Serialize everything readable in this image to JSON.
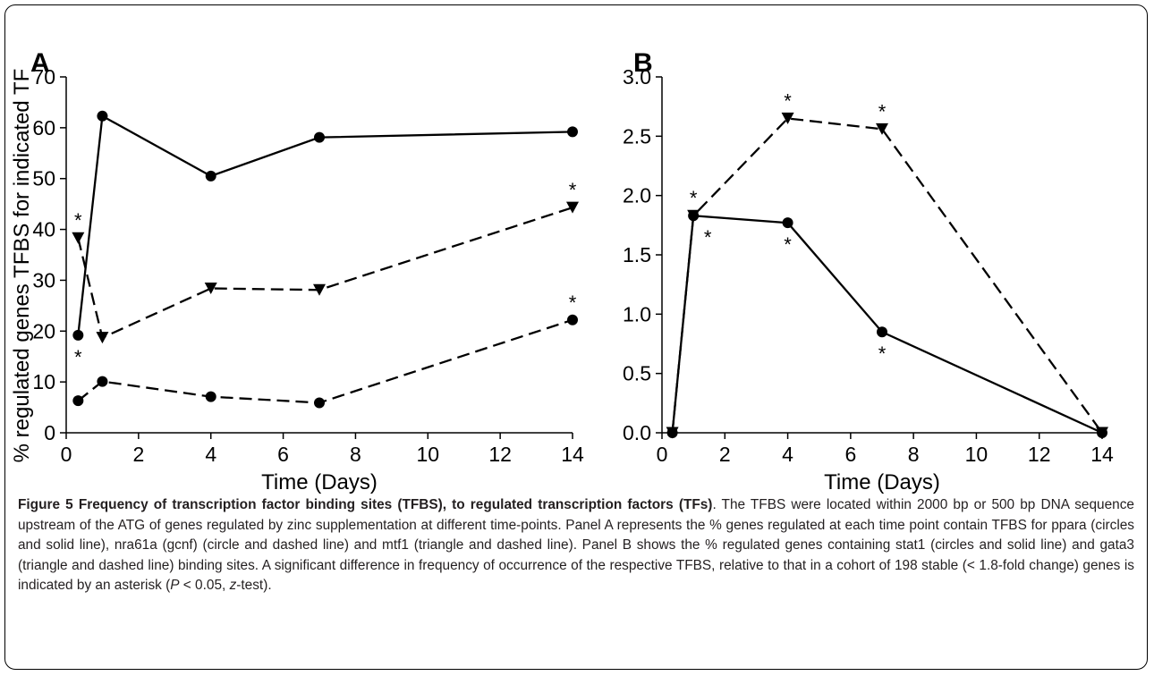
{
  "figure": {
    "caption_lead": "Figure 5 Frequency of transcription factor binding sites (TFBS), to regulated transcription factors (TFs)",
    "caption_body_1": ". The TFBS were located within 2000 bp or 500 bp DNA sequence upstream of the ATG of genes regulated by zinc supplementation at different time-points. Panel A represents the % genes regulated at each time point contain TFBS for ppara (circles and solid line), nra61a (gcnf) (circle and dashed line) and mtf1 (triangle and dashed line). Panel B shows the % regulated genes containing stat1 (circles and solid line) and gata3 (triangle and dashed line) binding sites. A significant difference in frequency of occurrence of the respective TFBS, relative to that in a cohort of 198 stable (< 1.8-fold change) genes is indicated by an asterisk (",
    "caption_p": "P",
    "caption_mid": " < 0.05, ",
    "caption_z": "z",
    "caption_end": "-test)."
  },
  "chart_data": [
    {
      "panel": "A",
      "type": "line",
      "ylabel": "% regulated genes TFBS for indicated TF",
      "xlabel": "Time (Days)",
      "xlim": [
        0,
        14
      ],
      "ylim": [
        0,
        70
      ],
      "xticks": [
        0,
        2,
        4,
        6,
        8,
        10,
        12,
        14
      ],
      "yticks": [
        0,
        10,
        20,
        30,
        40,
        50,
        60,
        70
      ],
      "series": [
        {
          "marker": "circle",
          "line": "solid",
          "x": [
            0.33,
            1,
            4,
            7,
            14
          ],
          "y": [
            19.2,
            62.3,
            50.5,
            58.1,
            59.2
          ],
          "significant": [
            "below",
            "",
            "",
            "",
            ""
          ]
        },
        {
          "marker": "circle",
          "line": "dashed",
          "x": [
            0.33,
            1,
            4,
            7,
            14
          ],
          "y": [
            6.3,
            10.1,
            7.1,
            5.9,
            22.2
          ],
          "significant": [
            "",
            "",
            "",
            "",
            "above"
          ]
        },
        {
          "marker": "triangle",
          "line": "dashed",
          "x": [
            0.33,
            1,
            4,
            7,
            14
          ],
          "y": [
            38.3,
            18.7,
            28.4,
            28.1,
            44.3
          ],
          "significant": [
            "above",
            "",
            "",
            "",
            "above"
          ]
        }
      ]
    },
    {
      "panel": "B",
      "type": "line",
      "ylabel": "",
      "xlabel": "Time (Days)",
      "xlim": [
        0,
        14
      ],
      "ylim": [
        0,
        3.0
      ],
      "xticks": [
        0,
        2,
        4,
        6,
        8,
        10,
        12,
        14
      ],
      "yticks": [
        "0.0",
        "0.5",
        "1.0",
        "1.5",
        "2.0",
        "2.5",
        "3.0"
      ],
      "series": [
        {
          "marker": "circle",
          "line": "solid",
          "x": [
            0.33,
            1,
            4,
            7,
            14
          ],
          "y": [
            0.0,
            1.83,
            1.77,
            0.85,
            0.0
          ],
          "significant": [
            "",
            "below",
            "below",
            "below",
            ""
          ]
        },
        {
          "marker": "triangle",
          "line": "dashed",
          "x": [
            0.33,
            1,
            4,
            7,
            14
          ],
          "y": [
            0.0,
            1.83,
            2.65,
            2.56,
            0.0
          ],
          "significant": [
            "",
            "above",
            "above",
            "above",
            ""
          ]
        }
      ]
    }
  ],
  "significance_marker": "*"
}
